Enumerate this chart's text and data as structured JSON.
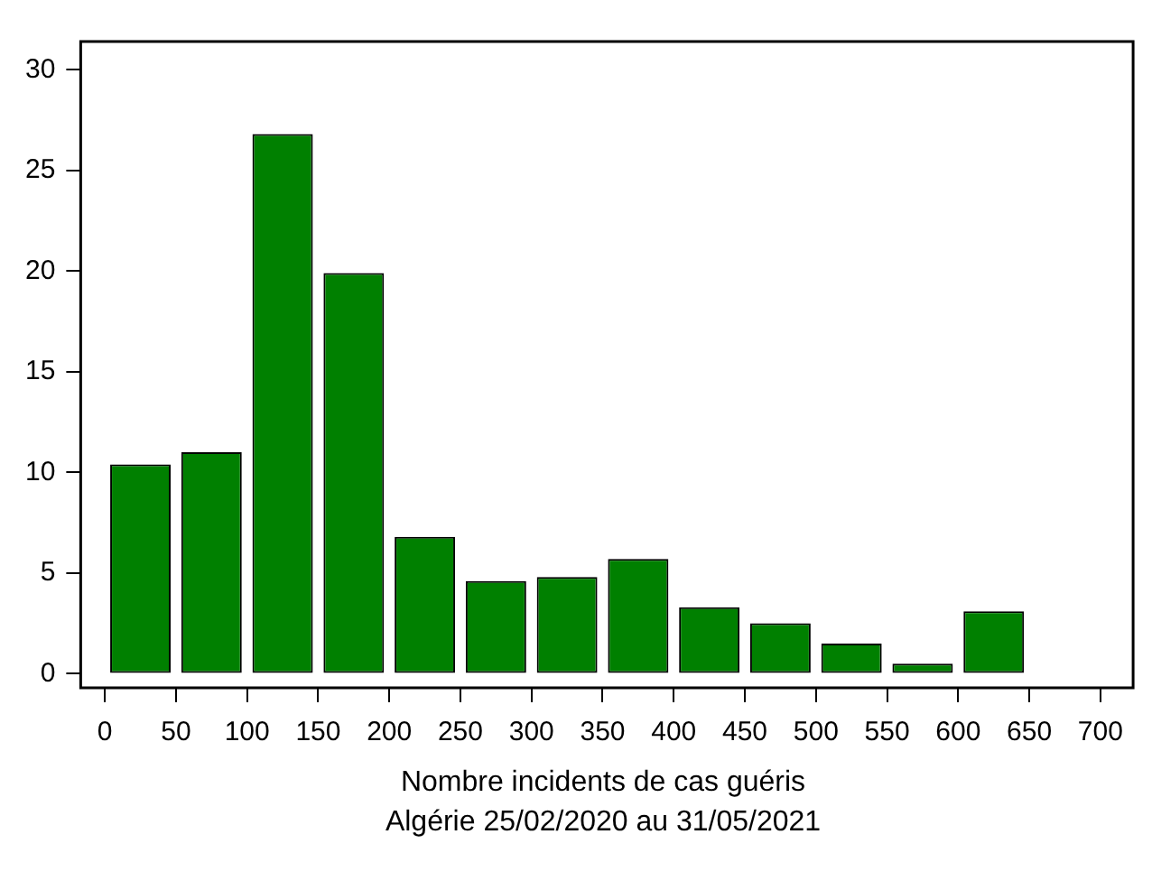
{
  "chart_data": {
    "type": "histogram",
    "xlabel": "Nombre incidents de cas guéris",
    "annotations": [
      "Algérie 25/02/2020 au 31/05/2021"
    ],
    "bins": [
      0,
      50,
      100,
      150,
      200,
      250,
      300,
      350,
      400,
      450,
      500,
      550,
      600,
      650
    ],
    "values": [
      10.4,
      11,
      26.8,
      19.9,
      6.8,
      4.6,
      4.8,
      5.7,
      3.3,
      2.5,
      1.5,
      0.5,
      3.1
    ],
    "color": "#008000",
    "xlim": [
      -17,
      723
    ],
    "ylim": [
      -0.7,
      31.4
    ],
    "xticks": [
      0,
      50,
      100,
      150,
      200,
      250,
      300,
      350,
      400,
      450,
      500,
      550,
      600,
      650,
      700
    ],
    "yticks": [
      0,
      5,
      10,
      15,
      20,
      25,
      30
    ],
    "grid": false,
    "legend": false
  }
}
